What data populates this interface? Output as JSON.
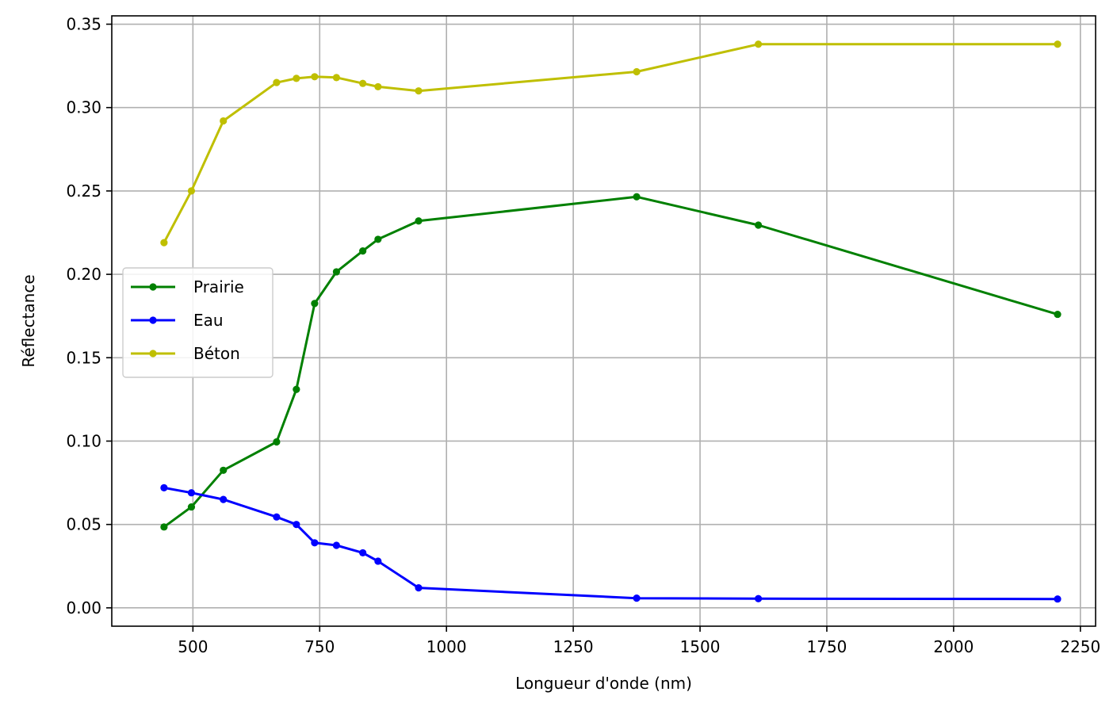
{
  "chart_data": {
    "type": "line",
    "xlabel": "Longueur d'onde (nm)",
    "ylabel": "Réflectance",
    "xlim": [
      340,
      2280
    ],
    "ylim": [
      -0.011,
      0.355
    ],
    "xticks": [
      500,
      750,
      1000,
      1250,
      1500,
      1750,
      2000,
      2250
    ],
    "yticks": [
      0.0,
      0.05,
      0.1,
      0.15,
      0.2,
      0.25,
      0.3,
      0.35
    ],
    "xtick_labels": [
      "500",
      "750",
      "1000",
      "1250",
      "1500",
      "1750",
      "2000",
      "2250"
    ],
    "ytick_labels": [
      "0.00",
      "0.05",
      "0.10",
      "0.15",
      "0.20",
      "0.25",
      "0.30",
      "0.35"
    ],
    "grid": true,
    "legend_position": "center-left",
    "x": [
      443,
      497,
      560,
      665,
      704,
      740,
      783,
      835,
      865,
      945,
      1375,
      1615,
      2205
    ],
    "series": [
      {
        "name": "Prairie",
        "color": "#008000",
        "values": [
          0.0485,
          0.0605,
          0.0825,
          0.0995,
          0.131,
          0.1825,
          0.2015,
          0.214,
          0.221,
          0.232,
          0.2465,
          0.2295,
          0.176
        ]
      },
      {
        "name": "Eau",
        "color": "#0000ff",
        "values": [
          0.072,
          0.069,
          0.065,
          0.0545,
          0.05,
          0.039,
          0.0375,
          0.033,
          0.028,
          0.012,
          0.0058,
          0.0055,
          0.0053
        ]
      },
      {
        "name": "Béton",
        "color": "#bfbf00",
        "values": [
          0.219,
          0.25,
          0.292,
          0.315,
          0.3175,
          0.3185,
          0.318,
          0.3145,
          0.3125,
          0.31,
          0.3215,
          0.338,
          0.338
        ]
      }
    ]
  }
}
